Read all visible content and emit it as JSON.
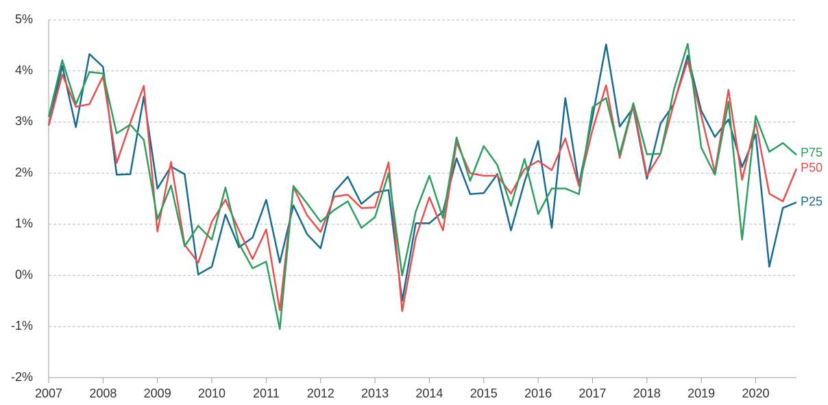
{
  "chart_data": {
    "type": "line",
    "x": [
      2007,
      2007.25,
      2007.5,
      2007.75,
      2008,
      2008.25,
      2008.5,
      2008.75,
      2009,
      2009.25,
      2009.5,
      2009.75,
      2010,
      2010.25,
      2010.5,
      2010.75,
      2011,
      2011.25,
      2011.5,
      2011.75,
      2012,
      2012.25,
      2012.5,
      2012.75,
      2013,
      2013.25,
      2013.5,
      2013.75,
      2014,
      2014.25,
      2014.5,
      2014.75,
      2015,
      2015.25,
      2015.5,
      2015.75,
      2016,
      2016.25,
      2016.5,
      2016.75,
      2017,
      2017.25,
      2017.5,
      2017.75,
      2018,
      2018.25,
      2018.5,
      2018.75,
      2019,
      2019.25,
      2019.5,
      2019.75,
      2020,
      2020.25,
      2020.5,
      2020.75
    ],
    "series": [
      {
        "name": "P25",
        "color": "#176b91",
        "values": [
          2.94,
          4.1,
          2.9,
          4.33,
          4.08,
          1.97,
          1.98,
          3.5,
          1.7,
          2.13,
          1.98,
          0.02,
          0.17,
          1.19,
          0.55,
          0.74,
          1.48,
          0.25,
          1.37,
          0.81,
          0.53,
          1.63,
          1.93,
          1.4,
          1.62,
          1.67,
          -0.5,
          1.02,
          1.02,
          1.25,
          2.29,
          1.59,
          1.61,
          1.98,
          0.88,
          1.83,
          2.63,
          0.93,
          3.47,
          1.77,
          3.1,
          4.52,
          2.91,
          3.28,
          1.89,
          2.97,
          3.36,
          4.3,
          3.22,
          2.71,
          3.05,
          2.12,
          2.76,
          0.17,
          1.32,
          1.43
        ]
      },
      {
        "name": "P50",
        "color": "#e8504f",
        "values": [
          2.93,
          3.93,
          3.3,
          3.35,
          3.9,
          2.2,
          2.98,
          3.71,
          0.86,
          2.22,
          0.6,
          0.25,
          1.05,
          1.48,
          0.88,
          0.32,
          0.9,
          -0.68,
          1.73,
          1.18,
          0.85,
          1.54,
          1.58,
          1.32,
          1.33,
          2.21,
          -0.7,
          0.74,
          1.53,
          0.88,
          2.6,
          2.0,
          1.95,
          1.95,
          1.6,
          2.08,
          2.24,
          2.06,
          2.68,
          1.75,
          2.85,
          3.72,
          2.3,
          3.33,
          1.95,
          2.38,
          3.38,
          4.2,
          3.12,
          2.02,
          3.63,
          1.87,
          3.0,
          1.6,
          1.45,
          2.09
        ]
      },
      {
        "name": "P75",
        "color": "#2e9e5e",
        "values": [
          3.1,
          4.21,
          3.35,
          3.98,
          3.95,
          2.78,
          2.95,
          2.65,
          1.1,
          1.76,
          0.57,
          0.97,
          0.7,
          1.72,
          0.62,
          0.14,
          0.27,
          -1.05,
          1.75,
          1.41,
          1.05,
          1.28,
          1.45,
          0.93,
          1.14,
          2.0,
          0.0,
          1.25,
          1.95,
          1.12,
          2.7,
          1.85,
          2.53,
          2.16,
          1.36,
          2.28,
          1.2,
          1.7,
          1.7,
          1.59,
          3.29,
          3.47,
          2.37,
          3.37,
          2.37,
          2.38,
          3.65,
          4.53,
          2.5,
          1.97,
          3.4,
          0.7,
          3.12,
          2.42,
          2.59,
          2.36
        ]
      }
    ],
    "xlim": [
      2007,
      2020.75
    ],
    "xticks": [
      2007,
      2008,
      2009,
      2010,
      2011,
      2012,
      2013,
      2014,
      2015,
      2016,
      2017,
      2018,
      2019,
      2020
    ],
    "ylim": [
      -2,
      5
    ],
    "yticks": [
      {
        "value": -2,
        "label": "-2%"
      },
      {
        "value": -1,
        "label": "-1%"
      },
      {
        "value": 0,
        "label": "0%"
      },
      {
        "value": 1,
        "label": "1%"
      },
      {
        "value": 2,
        "label": "2%"
      },
      {
        "value": 3,
        "label": "3%"
      },
      {
        "value": 4,
        "label": "4%"
      },
      {
        "value": 5,
        "label": "5%"
      }
    ],
    "grid": true
  }
}
